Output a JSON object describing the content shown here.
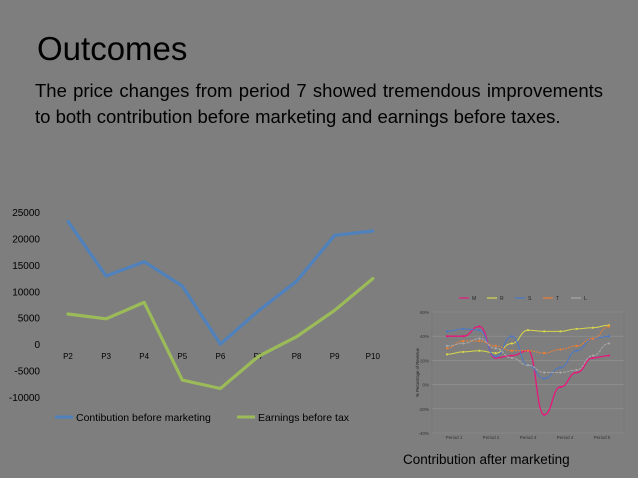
{
  "slide": {
    "title": "Outcomes",
    "body": "The price changes from period 7 showed tremendous improvements to both contribution before marketing and earnings before taxes.",
    "caption": "Contribution after marketing"
  },
  "chart_data": [
    {
      "type": "line",
      "categories": [
        "P2",
        "P3",
        "P4",
        "P5",
        "P6",
        "P7",
        "P8",
        "P9",
        "P10"
      ],
      "series": [
        {
          "name": "Contibution  before marketing",
          "color": "#4f81bd",
          "values": [
            23200,
            12900,
            15600,
            11000,
            0,
            6300,
            11900,
            20600,
            21400
          ]
        },
        {
          "name": "Earnings before tax",
          "color": "#9bbb59",
          "values": [
            5700,
            4800,
            7900,
            -6800,
            -8400,
            -2300,
            1400,
            6400,
            12400
          ]
        }
      ],
      "ylim": [
        -10000,
        25000
      ],
      "yticks": [
        "25000",
        "20000",
        "15000",
        "10000",
        "5000",
        "0",
        "-5000",
        "-10000"
      ],
      "ytick_values": [
        25000,
        20000,
        15000,
        10000,
        5000,
        0,
        -5000,
        -10000
      ],
      "legend": "bottom",
      "grid": false
    },
    {
      "type": "line",
      "legend_labels": [
        "M",
        "R",
        "S",
        "T",
        "L"
      ],
      "colors": [
        "#e8177c",
        "#d8d84a",
        "#4a78c9",
        "#f07e30",
        "#a8a8a8"
      ],
      "ylabel": "% Percentage of Revenue",
      "yticks": [
        "60%",
        "40%",
        "20%",
        "0%",
        "-20%",
        "-40%"
      ],
      "ytick_values": [
        60,
        40,
        20,
        0,
        -20,
        -40
      ],
      "xticks": [
        "Period 1",
        "Period 2",
        "Period 3",
        "Period 4",
        "Period 5"
      ],
      "ylim": [
        -40,
        60
      ],
      "grid": true,
      "legend": "top",
      "series": [
        {
          "name": "M",
          "values": [
            40,
            40,
            48,
            22,
            24,
            28,
            -25,
            -2,
            10,
            22,
            24
          ]
        },
        {
          "name": "R",
          "values": [
            25,
            27,
            28,
            26,
            34,
            45,
            44,
            44,
            46,
            47,
            49
          ]
        },
        {
          "name": "S",
          "values": [
            44,
            46,
            45,
            23,
            40,
            16,
            5,
            14,
            28,
            38,
            40
          ]
        },
        {
          "name": "T",
          "values": [
            30,
            36,
            36,
            32,
            28,
            28,
            26,
            29,
            32,
            38,
            48
          ]
        },
        {
          "name": "L",
          "values": [
            32,
            34,
            38,
            30,
            22,
            16,
            10,
            10,
            12,
            24,
            34
          ]
        }
      ]
    }
  ]
}
